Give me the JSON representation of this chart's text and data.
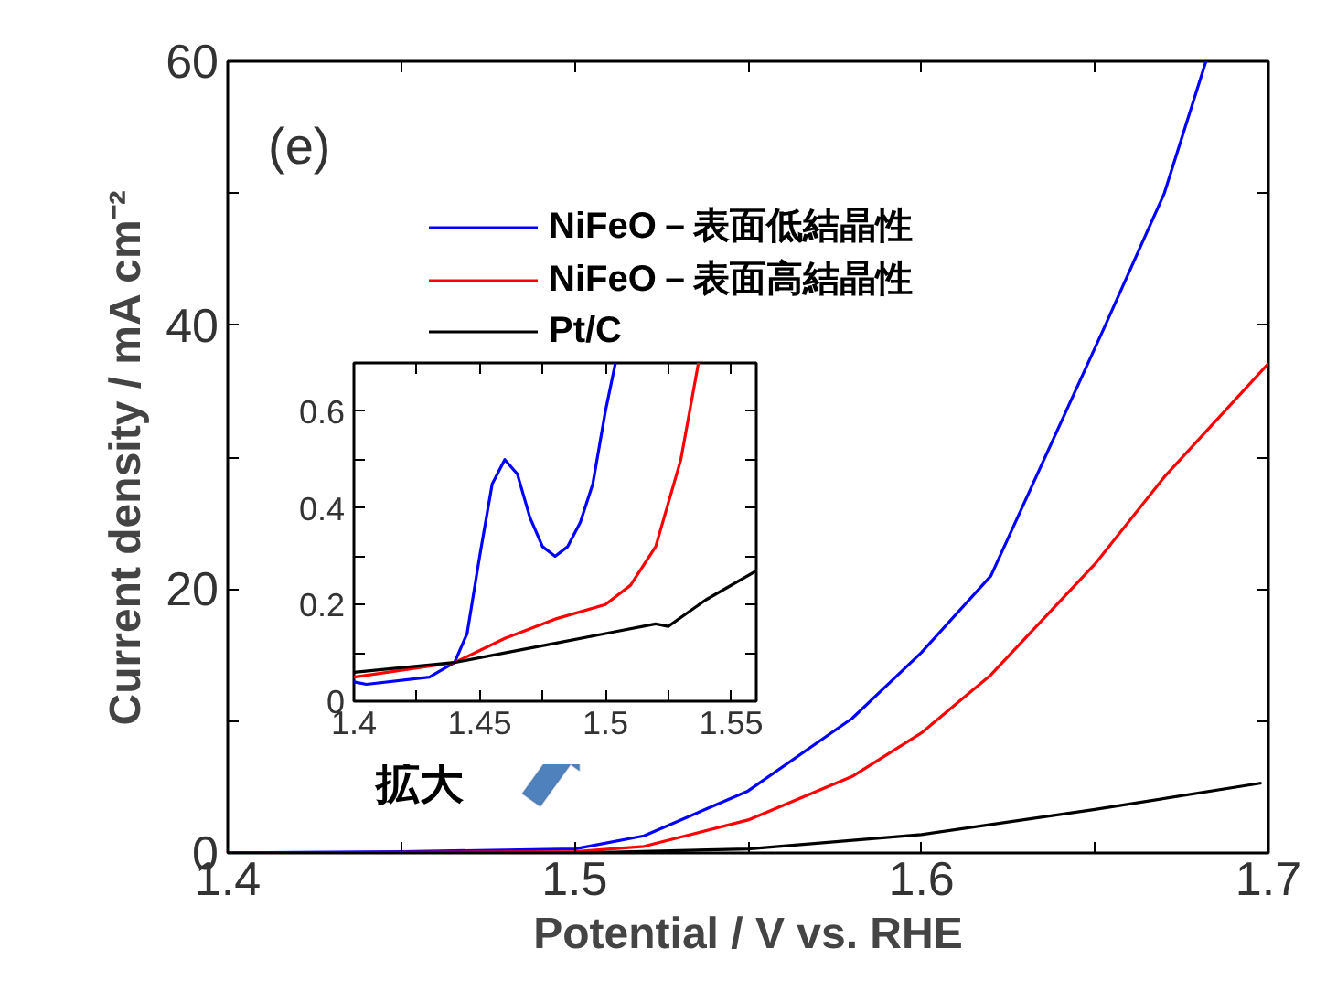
{
  "chart_data": [
    {
      "type": "line",
      "xlabel": "Potential / V vs. RHE",
      "ylabel": "Current density / mA cm⁻²",
      "xlim": [
        1.4,
        1.7
      ],
      "ylim": [
        0,
        60
      ],
      "xticks": [
        1.4,
        {
          "value": 1.45,
          "label": null
        },
        1.5,
        {
          "value": 1.55,
          "label": null
        },
        1.6,
        {
          "value": 1.65,
          "label": null
        },
        1.7
      ],
      "yticks": [
        0,
        {
          "value": 10,
          "label": null
        },
        20,
        {
          "value": 30,
          "label": null
        },
        40,
        {
          "value": 50,
          "label": null
        },
        60
      ],
      "legend": "top left",
      "grid": false,
      "annotations": [
        "(e)",
        "拡大"
      ],
      "series": [
        {
          "name": "NiFeO－表面低結晶性",
          "color": "#0000ff",
          "x": [
            1.4,
            1.45,
            1.5,
            1.52,
            1.55,
            1.58,
            1.6,
            1.62,
            1.653,
            1.67,
            1.682
          ],
          "values": [
            0.0,
            0.1,
            0.3,
            1.3,
            4.7,
            10.2,
            15.2,
            21.0,
            40.0,
            50.0,
            60.0
          ]
        },
        {
          "name": "NiFeO－表面高結晶性",
          "color": "#ff0000",
          "x": [
            1.4,
            1.5,
            1.52,
            1.55,
            1.58,
            1.6,
            1.62,
            1.65,
            1.67,
            1.7
          ],
          "values": [
            0.0,
            0.1,
            0.5,
            2.5,
            5.8,
            9.1,
            13.5,
            21.9,
            28.5,
            37.1
          ]
        },
        {
          "name": "Pt/C",
          "color": "#000000",
          "x": [
            1.4,
            1.5,
            1.55,
            1.6,
            1.65,
            1.698
          ],
          "values": [
            0.0,
            0.0,
            0.3,
            1.4,
            3.3,
            5.3
          ]
        }
      ]
    },
    {
      "type": "line",
      "xlim": [
        1.4,
        1.56
      ],
      "ylim": [
        0,
        0.7
      ],
      "xticks": [
        1.4,
        {
          "value": 1.425,
          "label": null
        },
        1.45,
        {
          "value": 1.475,
          "label": null
        },
        1.5,
        {
          "value": 1.525,
          "label": null
        },
        1.55
      ],
      "yticks": [
        0,
        {
          "value": 0.1,
          "label": null
        },
        0.2,
        {
          "value": 0.3,
          "label": null
        },
        0.4,
        {
          "value": 0.5,
          "label": null
        },
        0.6
      ],
      "grid": false,
      "series": [
        {
          "color": "#0000ff",
          "x": [
            1.4,
            1.405,
            1.43,
            1.44,
            1.445,
            1.45,
            1.455,
            1.46,
            1.465,
            1.47,
            1.475,
            1.48,
            1.485,
            1.49,
            1.495,
            1.5,
            1.504
          ],
          "values": [
            0.04,
            0.035,
            0.05,
            0.08,
            0.14,
            0.3,
            0.45,
            0.5,
            0.47,
            0.38,
            0.32,
            0.3,
            0.32,
            0.37,
            0.45,
            0.6,
            0.7
          ]
        },
        {
          "color": "#ff0000",
          "x": [
            1.4,
            1.44,
            1.46,
            1.48,
            1.5,
            1.51,
            1.52,
            1.53,
            1.537
          ],
          "values": [
            0.05,
            0.08,
            0.13,
            0.17,
            0.2,
            0.24,
            0.32,
            0.5,
            0.7
          ]
        },
        {
          "color": "#000000",
          "x": [
            1.4,
            1.44,
            1.46,
            1.48,
            1.5,
            1.52,
            1.525,
            1.54,
            1.56
          ],
          "values": [
            0.06,
            0.08,
            0.1,
            0.12,
            0.14,
            0.16,
            0.155,
            0.21,
            0.27
          ]
        }
      ]
    }
  ]
}
